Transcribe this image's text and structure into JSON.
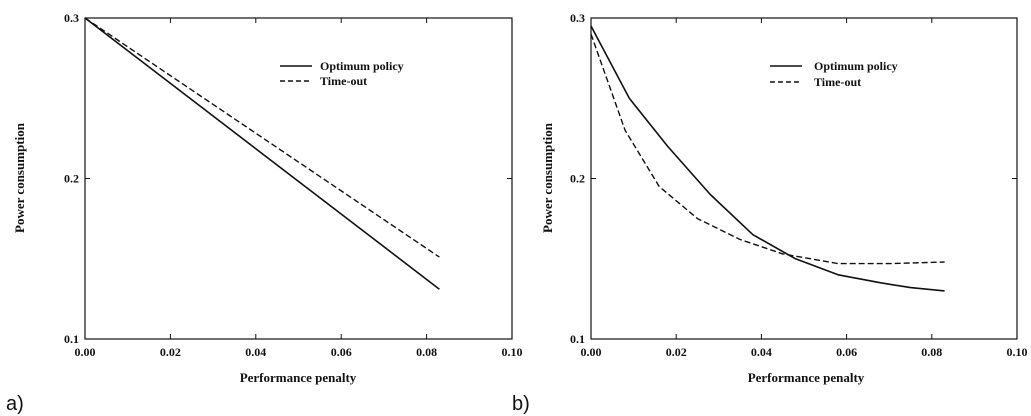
{
  "chart_data": [
    {
      "type": "line",
      "panel_label": "a)",
      "xlabel": "Performance penalty",
      "ylabel": "Power consumption",
      "xlim": [
        0.0,
        0.1
      ],
      "ylim": [
        0.1,
        0.3
      ],
      "xticks": [
        "0.00",
        "0.02",
        "0.04",
        "0.06",
        "0.08",
        "0.10"
      ],
      "yticks": [
        "0.1",
        "0.2",
        "0.3"
      ],
      "legend_position": "top-right",
      "series": [
        {
          "name": "Optimum policy",
          "style": "solid",
          "x": [
            0.0,
            0.083
          ],
          "y": [
            0.3,
            0.131
          ]
        },
        {
          "name": "Time-out",
          "style": "dashed",
          "x": [
            0.0,
            0.083
          ],
          "y": [
            0.3,
            0.151
          ]
        }
      ]
    },
    {
      "type": "line",
      "panel_label": "b)",
      "xlabel": "Performance penalty",
      "ylabel": "Power consumption",
      "xlim": [
        0.0,
        0.1
      ],
      "ylim": [
        0.1,
        0.3
      ],
      "xticks": [
        "0.00",
        "0.02",
        "0.04",
        "0.06",
        "0.08",
        "0.10"
      ],
      "yticks": [
        "0.1",
        "0.2",
        "0.3"
      ],
      "legend_position": "top-right",
      "series": [
        {
          "name": "Optimum policy",
          "style": "solid",
          "x": [
            0.0,
            0.009,
            0.018,
            0.028,
            0.038,
            0.048,
            0.058,
            0.068,
            0.075,
            0.083
          ],
          "y": [
            0.295,
            0.25,
            0.22,
            0.19,
            0.165,
            0.15,
            0.14,
            0.135,
            0.132,
            0.13
          ]
        },
        {
          "name": "Time-out",
          "style": "dashed",
          "x": [
            0.0,
            0.008,
            0.016,
            0.025,
            0.035,
            0.045,
            0.058,
            0.07,
            0.083
          ],
          "y": [
            0.29,
            0.23,
            0.195,
            0.175,
            0.162,
            0.153,
            0.147,
            0.147,
            0.148
          ]
        }
      ]
    }
  ]
}
